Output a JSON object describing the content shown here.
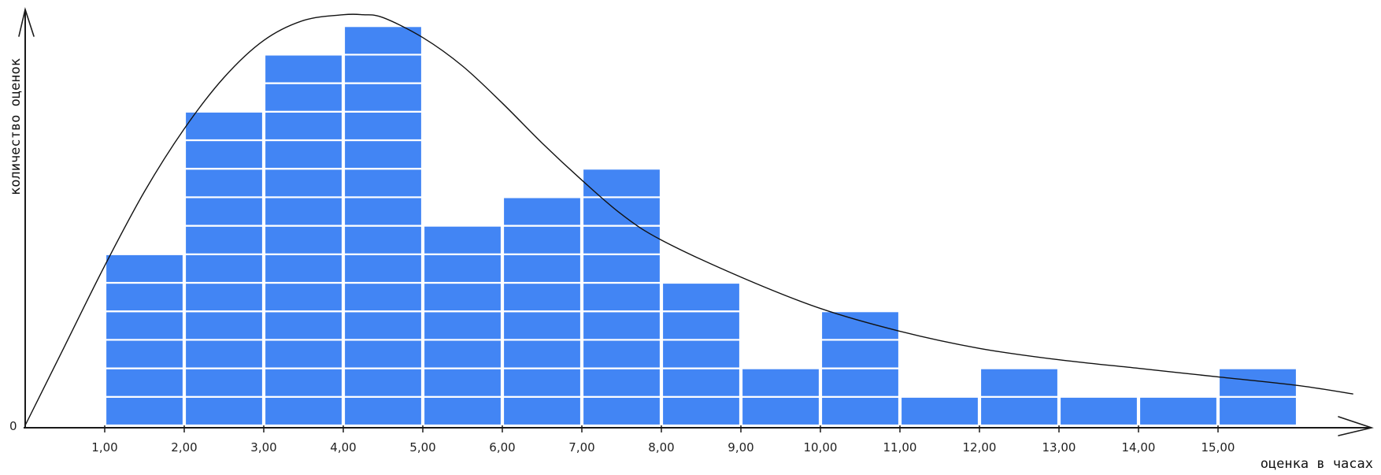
{
  "chart_data": {
    "type": "bar",
    "categories": [
      "1,00-2,00",
      "2,00-3,00",
      "3,00-4,00",
      "4,00-5,00",
      "5,00-6,00",
      "6,00-7,00",
      "7,00-8,00",
      "8,00-9,00",
      "9,00-10,00",
      "10,00-11,00",
      "11,00-12,00",
      "12,00-13,00",
      "13,00-14,00",
      "14,00-15,00",
      "15,00-16,00"
    ],
    "bin_start": [
      1,
      2,
      3,
      4,
      5,
      6,
      7,
      8,
      9,
      10,
      11,
      12,
      13,
      14,
      15
    ],
    "values": [
      6,
      11,
      13,
      14,
      7,
      8,
      9,
      5,
      2,
      4,
      1,
      2,
      1,
      1,
      2
    ],
    "x_ticks": [
      "1,00",
      "2,00",
      "3,00",
      "4,00",
      "5,00",
      "6,00",
      "7,00",
      "8,00",
      "9,00",
      "10,00",
      "11,00",
      "12,00",
      "13,00",
      "14,00",
      "15,00"
    ],
    "y_ticks": [
      "0"
    ],
    "xlabel": "оценка в часах",
    "ylabel": "количество оценок",
    "xlim": [
      0,
      16.7
    ],
    "ylim": [
      0,
      14.5
    ],
    "grid": false,
    "fitted_curve": {
      "type": "line",
      "x": [
        0,
        0.5,
        1,
        1.5,
        2,
        2.5,
        3,
        3.5,
        4,
        4.25,
        4.5,
        5,
        5.5,
        6,
        6.5,
        7,
        7.5,
        8,
        9,
        10,
        11,
        12,
        13,
        14,
        15,
        16,
        16.7
      ],
      "y": [
        0,
        2.8,
        5.6,
        8.2,
        10.4,
        12.2,
        13.5,
        14.2,
        14.4,
        14.4,
        14.3,
        13.6,
        12.6,
        11.3,
        9.9,
        8.6,
        7.4,
        6.5,
        5.2,
        4.1,
        3.3,
        2.7,
        2.3,
        2.0,
        1.7,
        1.4,
        1.1
      ]
    },
    "colors": {
      "bar": "#4285f4",
      "bar_separator": "#ffffff",
      "curve": "#111111",
      "axis": "#1a1a1a"
    }
  }
}
